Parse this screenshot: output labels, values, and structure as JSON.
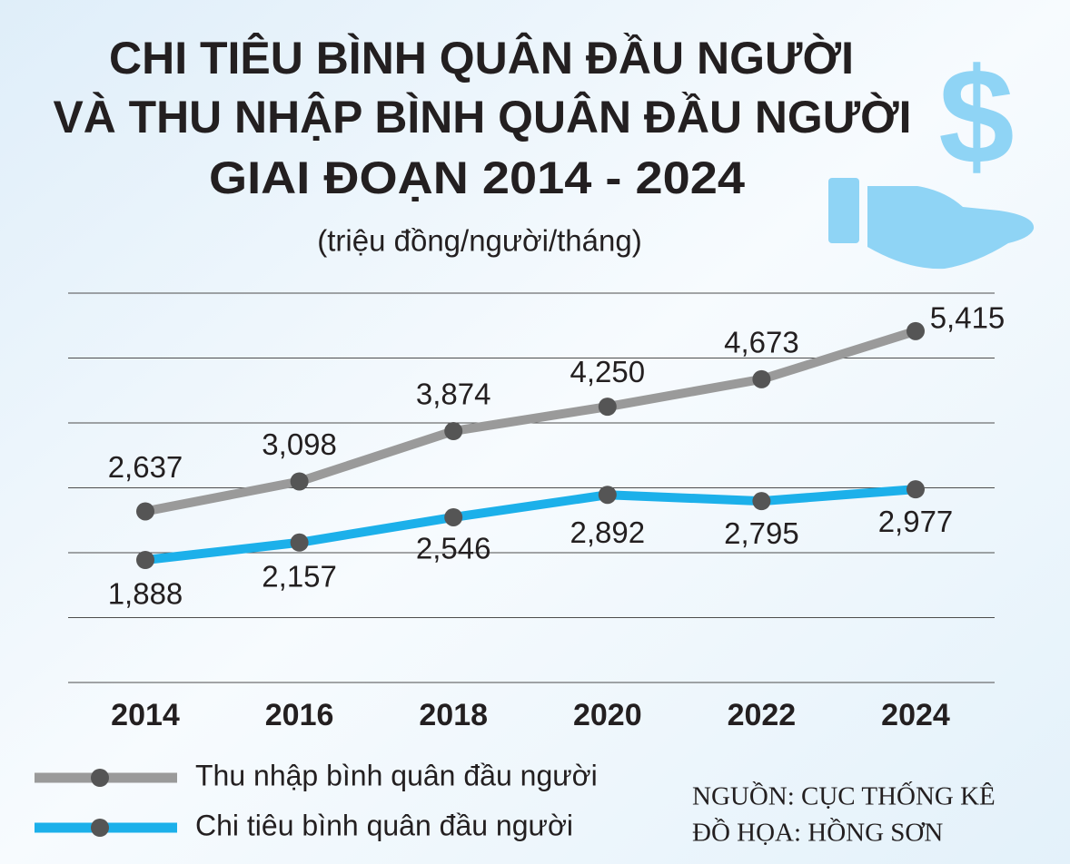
{
  "chart_data": {
    "type": "line",
    "title": [
      "CHI TIÊU BÌNH QUÂN ĐẦU NGƯỜI",
      "VÀ THU NHẬP BÌNH QUÂN ĐẦU NGƯỜI",
      "GIAI ĐOẠN 2014 - 2024"
    ],
    "subtitle": "(triệu đồng/người/tháng)",
    "categories": [
      "2014",
      "2016",
      "2018",
      "2020",
      "2022",
      "2024"
    ],
    "series": [
      {
        "name": "Thu nhập bình quân đầu người",
        "color": "#9a9a9a",
        "values": [
          2.637,
          3.098,
          3.874,
          4.25,
          4.673,
          5.415
        ],
        "value_labels": [
          "2,637",
          "3,098",
          "3,874",
          "4,250",
          "4,673",
          "5,415"
        ]
      },
      {
        "name": "Chi tiêu bình quân đầu người",
        "color": "#1cb0ea",
        "values": [
          1.888,
          2.157,
          2.546,
          2.892,
          2.795,
          2.977
        ],
        "value_labels": [
          "1,888",
          "2,157",
          "2,546",
          "2,892",
          "2,795",
          "2,977"
        ]
      }
    ],
    "ylim": [
      0,
      6
    ],
    "yticks": [
      0,
      1,
      2,
      3,
      4,
      5,
      6
    ],
    "show_ytick_labels": false,
    "grid": true,
    "marker_color": "#555555",
    "legend": "bottom-left",
    "source": "NGUỒN: CỤC THỐNG KÊ",
    "credit": "ĐỒ HỌA: HỒNG SƠN"
  }
}
